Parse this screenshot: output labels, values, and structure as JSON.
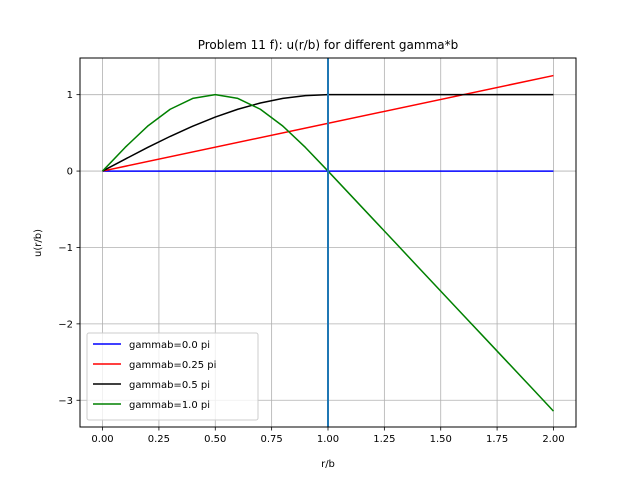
{
  "chart_data": {
    "type": "line",
    "title": "Problem 11 f): u(r/b) for different gamma*b",
    "xlabel": "r/b",
    "ylabel": "u(r/b)",
    "xlim": [
      -0.1,
      2.1
    ],
    "ylim": [
      -3.35,
      1.48
    ],
    "xticks": [
      0.0,
      0.25,
      0.5,
      0.75,
      1.0,
      1.25,
      1.5,
      1.75,
      2.0
    ],
    "xtick_labels": [
      "0.00",
      "0.25",
      "0.50",
      "0.75",
      "1.00",
      "1.25",
      "1.50",
      "1.75",
      "2.00"
    ],
    "yticks": [
      1,
      0,
      -1,
      -2,
      -3
    ],
    "ytick_labels": [
      "1",
      "0",
      "−1",
      "−2",
      "−3"
    ],
    "grid": true,
    "legend_position": "lower-left",
    "vline": {
      "x": 1.0,
      "color": "#1f77b4"
    },
    "x": [
      0.0,
      0.1,
      0.2,
      0.3,
      0.4,
      0.5,
      0.6,
      0.7,
      0.8,
      0.9,
      1.0,
      1.1,
      1.2,
      1.3,
      1.4,
      1.5,
      1.6,
      1.7,
      1.8,
      1.9,
      2.0
    ],
    "series": [
      {
        "name": "gammab=0.0 pi",
        "color": "#0000ff",
        "values": [
          0,
          0,
          0,
          0,
          0,
          0,
          0,
          0,
          0,
          0,
          0,
          0,
          0,
          0,
          0,
          0,
          0,
          0,
          0,
          0,
          0
        ]
      },
      {
        "name": "gammab=0.25 pi",
        "color": "#ff0000",
        "values": [
          0.0,
          0.078,
          0.156,
          0.233,
          0.309,
          0.383,
          0.454,
          0.522,
          0.588,
          0.649,
          0.707,
          0.76,
          0.809,
          0.853,
          0.891,
          0.924,
          0.951,
          0.972,
          0.988,
          0.997,
          1.25
        ]
      },
      {
        "name": "gammab=0.5 pi",
        "color": "#000000",
        "values": [
          0.0,
          0.156,
          0.309,
          0.454,
          0.588,
          0.707,
          0.809,
          0.891,
          0.951,
          0.988,
          1.0,
          1.0,
          1.0,
          1.0,
          1.0,
          1.0,
          1.0,
          1.0,
          1.0,
          1.0,
          1.0
        ]
      },
      {
        "name": "gammab=1.0 pi",
        "color": "#008000",
        "values": [
          0.0,
          0.309,
          0.588,
          0.809,
          0.951,
          1.0,
          0.951,
          0.809,
          0.588,
          0.309,
          0.0,
          -0.314,
          -0.628,
          -0.942,
          -1.257,
          -1.571,
          -1.885,
          -2.199,
          -2.513,
          -2.827,
          -3.142
        ]
      }
    ]
  }
}
